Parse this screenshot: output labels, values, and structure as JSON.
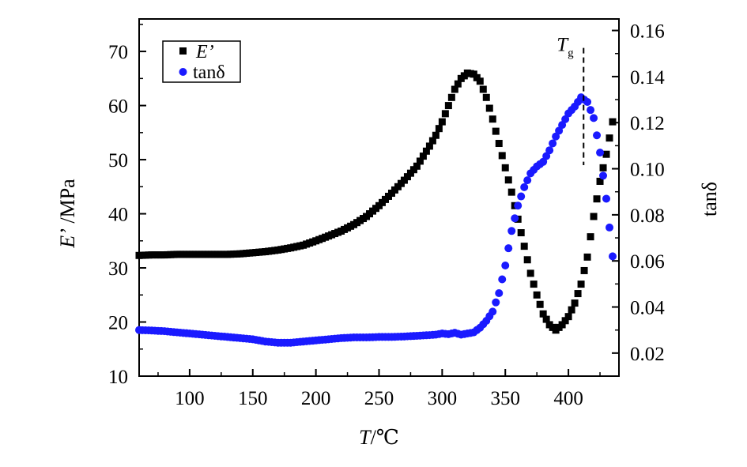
{
  "chart_data": {
    "type": "scatter",
    "x_axis": {
      "label_var": "T",
      "label_unit": "/℃",
      "range": [
        60,
        440
      ],
      "ticks": [
        100,
        150,
        200,
        250,
        300,
        350,
        400
      ]
    },
    "y_left": {
      "label_var": "E’",
      "label_unit": " /MPa",
      "range": [
        10,
        76
      ],
      "ticks": [
        10,
        20,
        30,
        40,
        50,
        60,
        70
      ]
    },
    "y_right": {
      "label": "tanδ",
      "range": [
        0.01,
        0.165
      ],
      "ticks": [
        "0.02",
        "0.04",
        "0.06",
        "0.08",
        "0.10",
        "0.12",
        "0.14",
        "0.16"
      ],
      "tick_values": [
        0.02,
        0.04,
        0.06,
        0.08,
        0.1,
        0.12,
        0.14,
        0.16
      ]
    },
    "legend_position": "top-left",
    "series": [
      {
        "name": "E’",
        "axis": "left",
        "marker": "square",
        "color": "#000000",
        "x": [
          60,
          70,
          80,
          90,
          100,
          110,
          120,
          130,
          140,
          150,
          160,
          170,
          180,
          190,
          200,
          210,
          220,
          230,
          240,
          250,
          260,
          270,
          280,
          290,
          295,
          300,
          305,
          310,
          315,
          320,
          325,
          330,
          335,
          340,
          345,
          350,
          355,
          360,
          365,
          370,
          375,
          380,
          385,
          390,
          395,
          400,
          405,
          410,
          415,
          420,
          425,
          430,
          435
        ],
        "y": [
          32.3,
          32.4,
          32.4,
          32.5,
          32.5,
          32.5,
          32.5,
          32.5,
          32.6,
          32.8,
          33.0,
          33.3,
          33.7,
          34.2,
          35.0,
          35.9,
          36.8,
          38.0,
          39.5,
          41.5,
          43.8,
          46.2,
          48.8,
          52.5,
          54.5,
          57.0,
          60.0,
          63.0,
          65.0,
          66.0,
          65.8,
          64.5,
          61.5,
          57.5,
          53.0,
          48.5,
          44.0,
          39.0,
          34.0,
          29.0,
          25.0,
          21.5,
          19.5,
          18.5,
          19.5,
          21.0,
          23.5,
          27.0,
          32.0,
          39.5,
          46.0,
          51.0,
          57.0
        ]
      },
      {
        "name": "tanδ",
        "axis": "right",
        "marker": "circle",
        "color": "#1a1aff",
        "x": [
          60,
          70,
          80,
          90,
          100,
          110,
          120,
          130,
          140,
          150,
          160,
          170,
          180,
          190,
          200,
          210,
          220,
          230,
          240,
          250,
          260,
          270,
          280,
          290,
          295,
          300,
          305,
          310,
          315,
          320,
          325,
          330,
          335,
          340,
          345,
          350,
          355,
          360,
          365,
          370,
          375,
          380,
          385,
          390,
          395,
          400,
          405,
          410,
          415,
          420,
          425,
          430,
          435
        ],
        "y": [
          0.03,
          0.0298,
          0.0295,
          0.029,
          0.0285,
          0.028,
          0.0275,
          0.027,
          0.0265,
          0.026,
          0.025,
          0.0245,
          0.0245,
          0.025,
          0.0255,
          0.026,
          0.0265,
          0.0268,
          0.0268,
          0.027,
          0.027,
          0.0272,
          0.0275,
          0.0278,
          0.028,
          0.0285,
          0.0282,
          0.0288,
          0.028,
          0.0285,
          0.029,
          0.031,
          0.034,
          0.038,
          0.046,
          0.058,
          0.073,
          0.084,
          0.092,
          0.098,
          0.101,
          0.103,
          0.108,
          0.114,
          0.119,
          0.124,
          0.127,
          0.131,
          0.129,
          0.122,
          0.107,
          0.087,
          0.062
        ]
      }
    ],
    "annotation": {
      "label_main": "T",
      "label_sub": "g",
      "x": 412,
      "y_top": 0.16,
      "y_bottom": 0.105
    }
  }
}
